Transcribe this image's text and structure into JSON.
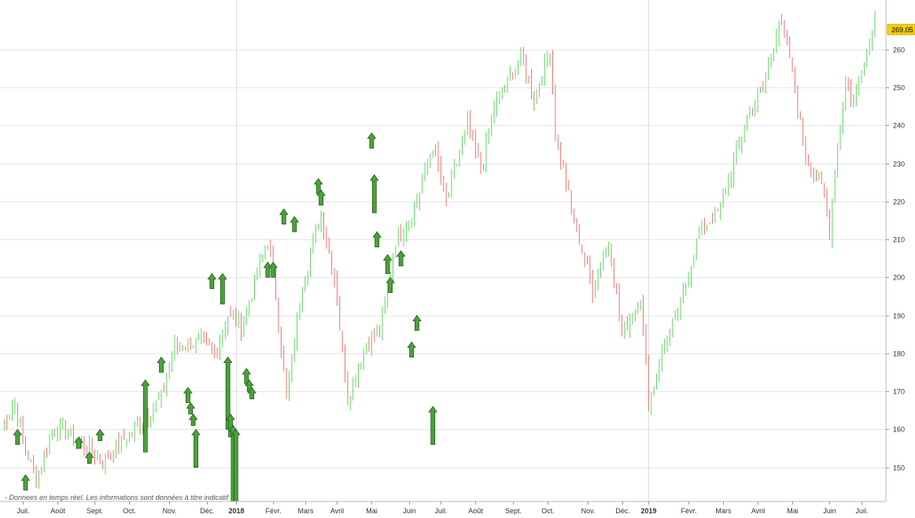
{
  "chart_data": {
    "type": "candlestick",
    "price_label": "269.05",
    "y_ticks": [
      150,
      160,
      170,
      180,
      190,
      200,
      210,
      220,
      230,
      240,
      250,
      260
    ],
    "ylim": [
      141,
      273
    ],
    "x_labels": [
      {
        "label": "Juil.",
        "i": 8,
        "year": false
      },
      {
        "label": "Août",
        "i": 21,
        "year": false
      },
      {
        "label": "Sept.",
        "i": 35,
        "year": false
      },
      {
        "label": "Oct.",
        "i": 48,
        "year": false
      },
      {
        "label": "Nov.",
        "i": 63,
        "year": false
      },
      {
        "label": "Déc.",
        "i": 77,
        "year": false
      },
      {
        "label": "2018",
        "i": 88,
        "year": true
      },
      {
        "label": "Févr.",
        "i": 102,
        "year": false
      },
      {
        "label": "Mars",
        "i": 114,
        "year": false
      },
      {
        "label": "Avril",
        "i": 126,
        "year": false
      },
      {
        "label": "Mai",
        "i": 139,
        "year": false
      },
      {
        "label": "Juin",
        "i": 153,
        "year": false
      },
      {
        "label": "Juil.",
        "i": 165,
        "year": false
      },
      {
        "label": "Août",
        "i": 178,
        "year": false
      },
      {
        "label": "Sept.",
        "i": 192,
        "year": false
      },
      {
        "label": "Oct.",
        "i": 205,
        "year": false
      },
      {
        "label": "Nov.",
        "i": 220,
        "year": false
      },
      {
        "label": "Déc.",
        "i": 233,
        "year": false
      },
      {
        "label": "2019",
        "i": 243,
        "year": true
      },
      {
        "label": "Févr.",
        "i": 258,
        "year": false
      },
      {
        "label": "Mars",
        "i": 271,
        "year": false
      },
      {
        "label": "Avril",
        "i": 284,
        "year": false
      },
      {
        "label": "Mai",
        "i": 297,
        "year": false
      },
      {
        "label": "Juin",
        "i": 311,
        "year": false
      },
      {
        "label": "Juil.",
        "i": 323,
        "year": false
      }
    ],
    "waypoints": [
      [
        0,
        161
      ],
      [
        5,
        167
      ],
      [
        8,
        157
      ],
      [
        13,
        147
      ],
      [
        20,
        161
      ],
      [
        30,
        156
      ],
      [
        38,
        152
      ],
      [
        50,
        160
      ],
      [
        60,
        168
      ],
      [
        65,
        182
      ],
      [
        75,
        183
      ],
      [
        80,
        180
      ],
      [
        85,
        190
      ],
      [
        90,
        187
      ],
      [
        100,
        210
      ],
      [
        103,
        195
      ],
      [
        107,
        168
      ],
      [
        113,
        198
      ],
      [
        120,
        217
      ],
      [
        125,
        200
      ],
      [
        130,
        168
      ],
      [
        137,
        183
      ],
      [
        142,
        185
      ],
      [
        148,
        210
      ],
      [
        155,
        218
      ],
      [
        162,
        235
      ],
      [
        167,
        220
      ],
      [
        175,
        240
      ],
      [
        180,
        228
      ],
      [
        185,
        245
      ],
      [
        195,
        258
      ],
      [
        200,
        247
      ],
      [
        206,
        260
      ],
      [
        208,
        238
      ],
      [
        214,
        218
      ],
      [
        222,
        197
      ],
      [
        228,
        210
      ],
      [
        233,
        185
      ],
      [
        240,
        195
      ],
      [
        243,
        167
      ],
      [
        248,
        180
      ],
      [
        255,
        193
      ],
      [
        262,
        212
      ],
      [
        270,
        218
      ],
      [
        280,
        242
      ],
      [
        286,
        250
      ],
      [
        292,
        268
      ],
      [
        296,
        258
      ],
      [
        302,
        232
      ],
      [
        309,
        222
      ],
      [
        311,
        212
      ],
      [
        313,
        228
      ],
      [
        317,
        252
      ],
      [
        320,
        246
      ],
      [
        324,
        258
      ],
      [
        326,
        262
      ],
      [
        328,
        269
      ]
    ],
    "candle_count": 329,
    "arrows": [
      {
        "i": 6,
        "low": 156,
        "high": 160
      },
      {
        "i": 9,
        "low": 144,
        "high": 148
      },
      {
        "i": 29,
        "low": 155,
        "high": 158
      },
      {
        "i": 33,
        "low": 151,
        "high": 154
      },
      {
        "i": 37,
        "low": 157,
        "high": 160
      },
      {
        "i": 54,
        "low": 154,
        "high": 173
      },
      {
        "i": 60,
        "low": 175,
        "high": 179
      },
      {
        "i": 70,
        "low": 167,
        "high": 171
      },
      {
        "i": 71,
        "low": 164,
        "high": 167
      },
      {
        "i": 72,
        "low": 161,
        "high": 164
      },
      {
        "i": 73,
        "low": 150,
        "high": 160
      },
      {
        "i": 79,
        "low": 197,
        "high": 201
      },
      {
        "i": 83,
        "low": 193,
        "high": 201
      },
      {
        "i": 85,
        "low": 160,
        "high": 179
      },
      {
        "i": 86,
        "low": 158,
        "high": 164
      },
      {
        "i": 87,
        "low": 141,
        "high": 161
      },
      {
        "i": 88,
        "low": 141,
        "high": 160
      },
      {
        "i": 92,
        "low": 172,
        "high": 176
      },
      {
        "i": 93,
        "low": 170,
        "high": 173
      },
      {
        "i": 94,
        "low": 168,
        "high": 171
      },
      {
        "i": 100,
        "low": 200,
        "high": 204
      },
      {
        "i": 102,
        "low": 200,
        "high": 204
      },
      {
        "i": 106,
        "low": 214,
        "high": 218
      },
      {
        "i": 110,
        "low": 212,
        "high": 216
      },
      {
        "i": 119,
        "low": 222,
        "high": 226
      },
      {
        "i": 120,
        "low": 219,
        "high": 223
      },
      {
        "i": 139,
        "low": 234,
        "high": 238
      },
      {
        "i": 140,
        "low": 217,
        "high": 227
      },
      {
        "i": 141,
        "low": 208,
        "high": 212
      },
      {
        "i": 145,
        "low": 201,
        "high": 206
      },
      {
        "i": 146,
        "low": 196,
        "high": 200
      },
      {
        "i": 150,
        "low": 203,
        "high": 207
      },
      {
        "i": 154,
        "low": 179,
        "high": 183
      },
      {
        "i": 156,
        "low": 186,
        "high": 190
      },
      {
        "i": 162,
        "low": 156,
        "high": 166
      }
    ]
  }
}
